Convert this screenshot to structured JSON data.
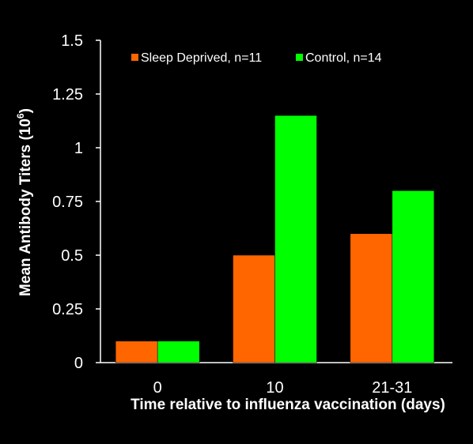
{
  "chart_data": {
    "type": "bar",
    "title": "",
    "xlabel": "Time relative to influenza vaccination (days)",
    "ylabel": "Mean Antibody Titers (10",
    "ylabel_sup": "6",
    "ylabel_close": ")",
    "categories": [
      "0",
      "10",
      "21-31"
    ],
    "series": [
      {
        "name": "Sleep Deprived, n=11",
        "color": "#ff6600",
        "values": [
          0.1,
          0.5,
          0.6
        ]
      },
      {
        "name": "Control, n=14",
        "color": "#00ff00",
        "values": [
          0.1,
          1.15,
          0.8
        ]
      }
    ],
    "ylim": [
      0,
      1.5
    ],
    "yticks": [
      "0",
      "0.25",
      "0.5",
      "0.75",
      "1",
      "1.25",
      "1.5"
    ],
    "ytick_values": [
      0,
      0.25,
      0.5,
      0.75,
      1,
      1.25,
      1.5
    ],
    "legend_position": "top",
    "grid": false,
    "colors": {
      "background": "#000000",
      "axis": "#ffffff",
      "text": "#ffffff"
    }
  }
}
